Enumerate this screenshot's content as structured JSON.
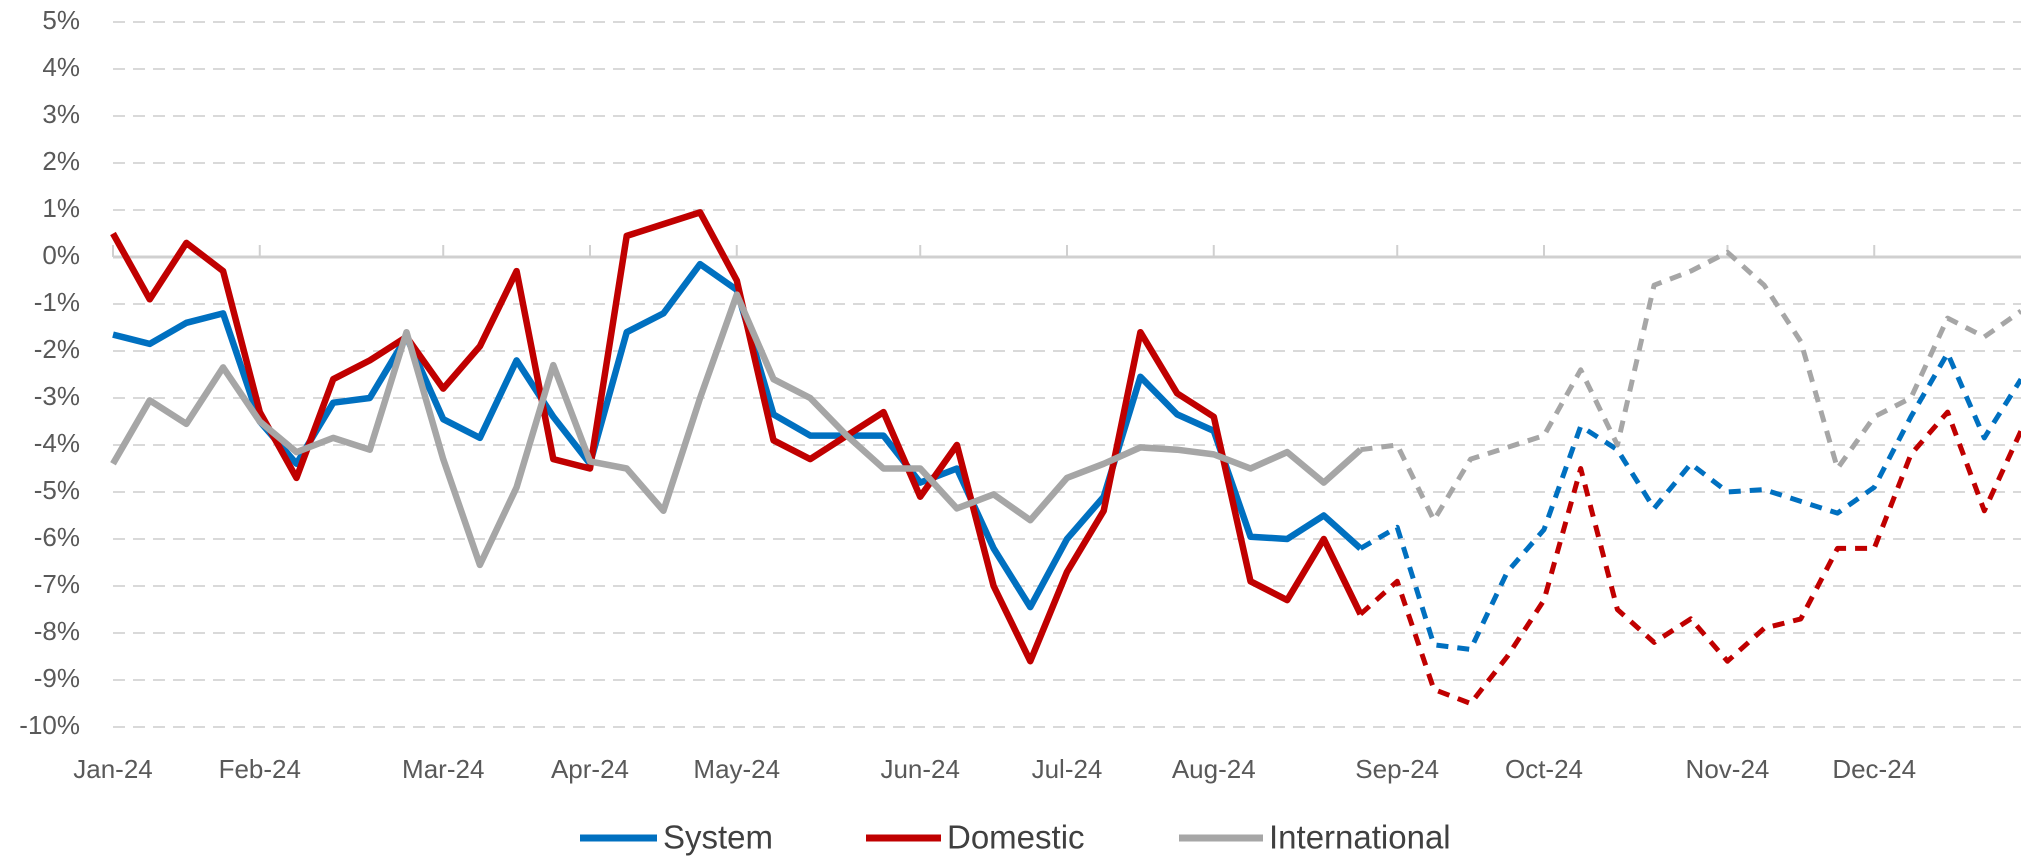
{
  "chart_data": {
    "type": "line",
    "categories": [
      "Jan-24",
      null,
      null,
      null,
      "Feb-24",
      null,
      null,
      null,
      null,
      "Mar-24",
      null,
      null,
      null,
      "Apr-24",
      null,
      null,
      null,
      "May-24",
      null,
      null,
      null,
      null,
      "Jun-24",
      null,
      null,
      null,
      "Jul-24",
      null,
      null,
      null,
      "Aug-24",
      null,
      null,
      null,
      null,
      "Sep-24",
      null,
      null,
      null,
      "Oct-24",
      null,
      null,
      null,
      null,
      "Nov-24",
      null,
      null,
      null,
      "Dec-24",
      null,
      null,
      null,
      null
    ],
    "series": [
      {
        "name": "System",
        "color": "#0070c0",
        "values": [
          -1.65,
          -1.85,
          -1.4,
          -1.2,
          -3.5,
          -4.4,
          -3.1,
          -3.0,
          -1.7,
          -3.45,
          -3.85,
          -2.2,
          -3.4,
          -4.4,
          -1.6,
          -1.2,
          -0.15,
          -0.7,
          -3.35,
          -3.8,
          -3.8,
          -3.8,
          -4.8,
          -4.5,
          -6.2,
          -7.45,
          -6.0,
          -5.1,
          -2.55,
          -3.35,
          -3.7,
          -5.95,
          -6.0,
          -5.5,
          -6.2,
          -5.75,
          -8.25,
          -8.35,
          -6.7,
          -5.8,
          -3.6,
          -4.1,
          -5.35,
          -4.4,
          -5.0,
          -4.95,
          -5.2,
          -5.45,
          -4.9,
          -3.4,
          -2.05,
          -3.85,
          -2.6
        ]
      },
      {
        "name": "Domestic",
        "color": "#c00000",
        "values": [
          0.5,
          -0.9,
          0.3,
          -0.3,
          -3.3,
          -4.7,
          -2.6,
          -2.2,
          -1.7,
          -2.8,
          -1.9,
          -0.3,
          -4.3,
          -4.5,
          0.45,
          0.7,
          0.95,
          -0.5,
          -3.9,
          -4.3,
          -3.8,
          -3.3,
          -5.1,
          -4.0,
          -7.0,
          -8.6,
          -6.7,
          -5.4,
          -1.6,
          -2.9,
          -3.4,
          -6.9,
          -7.3,
          -6.0,
          -7.6,
          -6.9,
          -9.2,
          -9.5,
          -8.5,
          -7.3,
          -4.5,
          -7.5,
          -8.2,
          -7.7,
          -8.6,
          -7.9,
          -7.7,
          -6.2,
          -6.2,
          -4.2,
          -3.3,
          -5.4,
          -3.7
        ]
      },
      {
        "name": "International",
        "color": "#a6a6a6",
        "values": [
          -4.4,
          -3.05,
          -3.55,
          -2.35,
          -3.5,
          -4.15,
          -3.85,
          -4.1,
          -1.6,
          -4.3,
          -6.55,
          -4.9,
          -2.3,
          -4.35,
          -4.5,
          -5.4,
          -3.0,
          -0.8,
          -2.6,
          -3.0,
          -3.8,
          -4.5,
          -4.5,
          -5.35,
          -5.05,
          -5.6,
          -4.7,
          -4.4,
          -4.05,
          -4.1,
          -4.2,
          -4.5,
          -4.15,
          -4.8,
          -4.1,
          -4.0,
          -5.6,
          -4.3,
          -4.05,
          -3.8,
          -2.4,
          -4.0,
          -0.6,
          -0.3,
          0.1,
          -0.6,
          -1.8,
          -4.5,
          -3.4,
          -3.0,
          -1.3,
          -1.7,
          -1.15
        ]
      }
    ],
    "forecast_start": 34,
    "ylim": [
      -10,
      5
    ],
    "yticks": [
      {
        "value": -10,
        "label": "-10%"
      },
      {
        "value": -9,
        "label": "-9%"
      },
      {
        "value": -8,
        "label": "-8%"
      },
      {
        "value": -7,
        "label": "-7%"
      },
      {
        "value": -6,
        "label": "-6%"
      },
      {
        "value": -5,
        "label": "-5%"
      },
      {
        "value": -4,
        "label": "-4%"
      },
      {
        "value": -3,
        "label": "-3%"
      },
      {
        "value": -2,
        "label": "-2%"
      },
      {
        "value": -1,
        "label": "-1%"
      },
      {
        "value": 0,
        "label": "0%"
      },
      {
        "value": 1,
        "label": "1%"
      },
      {
        "value": 2,
        "label": "2%"
      },
      {
        "value": 3,
        "label": "3%"
      },
      {
        "value": 4,
        "label": "4%"
      },
      {
        "value": 5,
        "label": "5%"
      }
    ],
    "grid": true,
    "legend": "bottom"
  }
}
